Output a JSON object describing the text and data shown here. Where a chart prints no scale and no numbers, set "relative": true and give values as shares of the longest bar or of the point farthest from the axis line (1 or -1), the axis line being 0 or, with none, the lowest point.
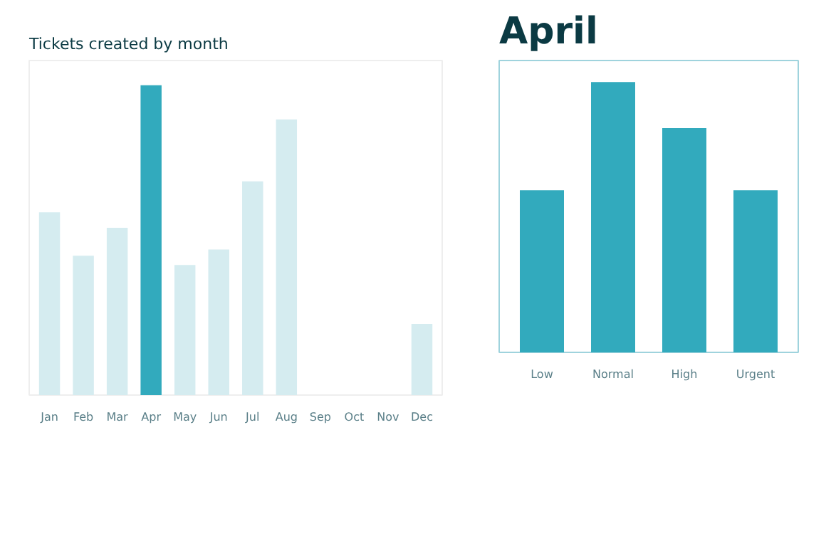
{
  "chart_data": [
    {
      "type": "bar",
      "title": "Tickets created by month",
      "relative": true,
      "grid": false,
      "categories": [
        "Jan",
        "Feb",
        "Mar",
        "Apr",
        "May",
        "Jun",
        "Jul",
        "Aug",
        "Sep",
        "Oct",
        "Nov",
        "Dec"
      ],
      "values": [
        0.59,
        0.45,
        0.54,
        1,
        0.42,
        0.47,
        0.69,
        0.89,
        null,
        null,
        null,
        0.23
      ],
      "colors": [
        "#d5ecf0",
        "#d5ecf0",
        "#d5ecf0",
        "#32aabd",
        "#d5ecf0",
        "#d5ecf0",
        "#d5ecf0",
        "#d5ecf0",
        "#d5ecf0",
        "#d5ecf0",
        "#d5ecf0",
        "#d5ecf0"
      ]
    },
    {
      "type": "bar",
      "title": "April",
      "relative": true,
      "grid": false,
      "categories": [
        "Low",
        "Normal",
        "High",
        "Urgent"
      ],
      "values": [
        0.6,
        1,
        0.83,
        0.6
      ],
      "color": "#32aabd"
    }
  ]
}
